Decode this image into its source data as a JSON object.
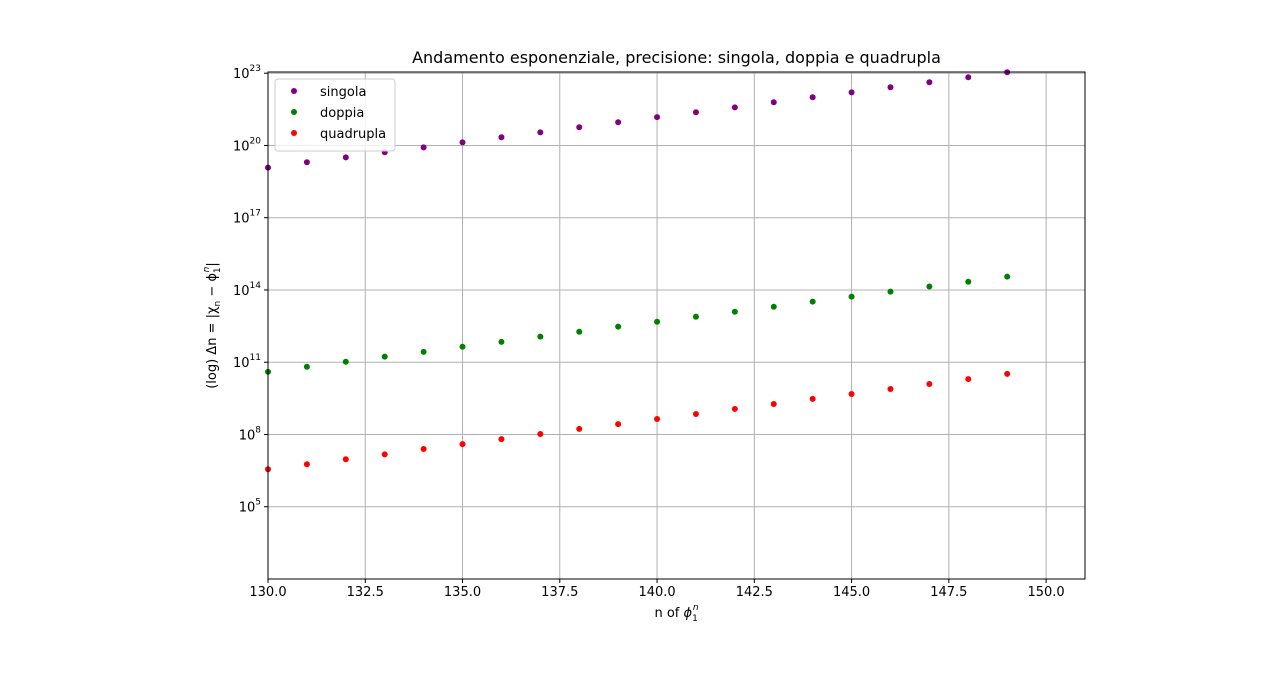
{
  "chart_data": {
    "type": "scatter",
    "title": "Andamento esponenziale, precisione: singola, doppia e quadrupla",
    "xlabel_prefix": "n of ",
    "xlabel_math": "ϕ",
    "xlabel_sub": "1",
    "xlabel_sup": "n",
    "ylabel_prefix": "(log) Δn = |χ",
    "ylabel_sub1": "n",
    "ylabel_mid": " − ϕ",
    "ylabel_sub2": "1",
    "ylabel_sup2": "n",
    "ylabel_suffix": "|",
    "x_scale": "linear",
    "y_scale": "log",
    "xlim": [
      130.0,
      151.0
    ],
    "ylim_exp": [
      2.0,
      23.05
    ],
    "xticks": [
      "130.0",
      "132.5",
      "135.0",
      "137.5",
      "140.0",
      "142.5",
      "145.0",
      "147.5",
      "150.0"
    ],
    "yticks": [
      {
        "base": "10",
        "exp": "5"
      },
      {
        "base": "10",
        "exp": "8"
      },
      {
        "base": "10",
        "exp": "11"
      },
      {
        "base": "10",
        "exp": "14"
      },
      {
        "base": "10",
        "exp": "17"
      },
      {
        "base": "10",
        "exp": "20"
      },
      {
        "base": "10",
        "exp": "23"
      }
    ],
    "grid": true,
    "legend_position": "top-left",
    "x": [
      130,
      131,
      132,
      133,
      134,
      135,
      136,
      137,
      138,
      139,
      140,
      141,
      142,
      143,
      144,
      145,
      146,
      147,
      148,
      149
    ],
    "series": [
      {
        "name": "singola",
        "color": "#800080",
        "values": [
          1.2e+19,
          2e+19,
          3.2e+19,
          5.2e+19,
          8.3e+19,
          1.35e+20,
          2.2e+20,
          3.5e+20,
          5.7e+20,
          9.2e+20,
          1.5e+21,
          2.4e+21,
          3.8e+21,
          6.2e+21,
          1e+22,
          1.6e+22,
          2.6e+22,
          4.2e+22,
          6.8e+22,
          1.1e+23
        ]
      },
      {
        "name": "doppia",
        "color": "#008000",
        "values": [
          40000000000.0,
          65000000000.0,
          105000000000.0,
          170000000000.0,
          270000000000.0,
          440000000000.0,
          700000000000.0,
          1150000000000.0,
          1850000000000.0,
          3000000000000.0,
          4800000000000.0,
          7700000000000.0,
          12500000000000.0,
          20000000000000.0,
          33000000000000.0,
          53000000000000.0,
          85000000000000.0,
          140000000000000.0,
          220000000000000.0,
          360000000000000.0
        ]
      },
      {
        "name": "quadrupla",
        "color": "#ff0000",
        "values": [
          3600000.0,
          5800000.0,
          9400000.0,
          15000000.0,
          25000000.0,
          40000000.0,
          64000000.0,
          105000000.0,
          170000000.0,
          270000000.0,
          440000000.0,
          710000000.0,
          1150000000.0,
          1850000000.0,
          3000000000.0,
          4800000000.0,
          7700000000.0,
          12500000000.0,
          20000000000.0,
          33000000000.0
        ]
      }
    ]
  }
}
